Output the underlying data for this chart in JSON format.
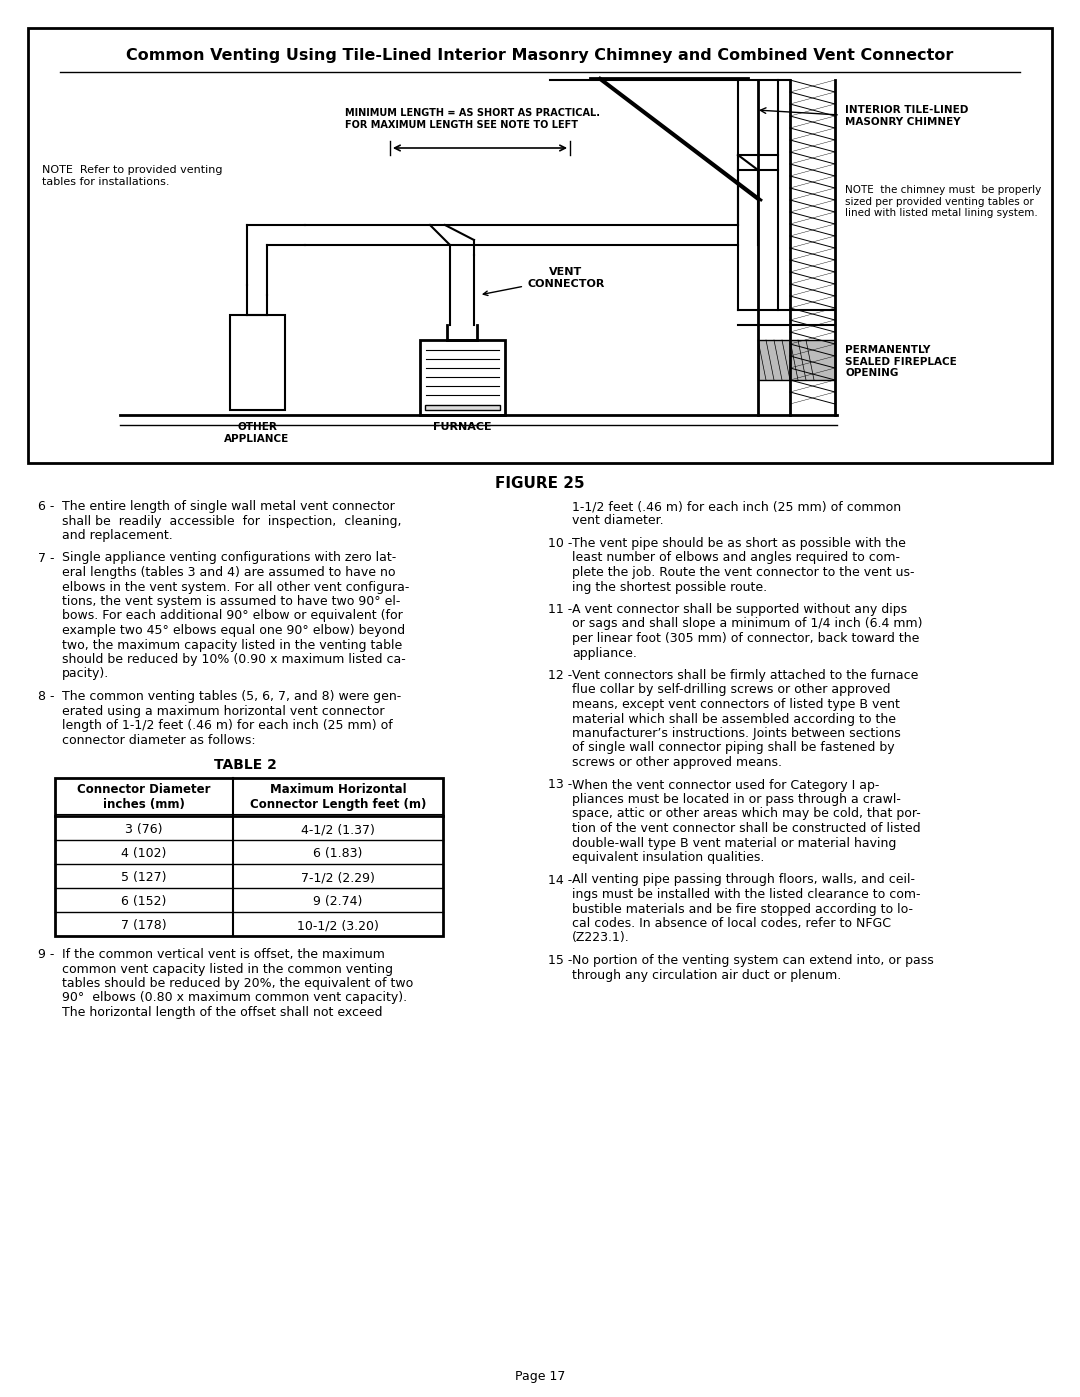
{
  "title": "Common Venting Using Tile-Lined Interior Masonry Chimney and Combined Vent Connector",
  "figure_label": "FIGURE 25",
  "table_title": "TABLE 2",
  "table_headers": [
    "Connector Diameter\ninches (mm)",
    "Maximum Horizontal\nConnector Length feet (m)"
  ],
  "table_data": [
    [
      "3 (76)",
      "4-1/2 (1.37)"
    ],
    [
      "4 (102)",
      "6 (1.83)"
    ],
    [
      "5 (127)",
      "7-1/2 (2.29)"
    ],
    [
      "6 (152)",
      "9 (2.74)"
    ],
    [
      "7 (178)",
      "10-1/2 (3.20)"
    ]
  ],
  "page_number": "Page 17",
  "bg_color": "#ffffff",
  "diagram_border_color": "#000000",
  "text_color": "#000000",
  "diagram_notes": {
    "min_length": "MINIMUM LENGTH = AS SHORT AS PRACTICAL.\nFOR MAXIMUM LENGTH SEE NOTE TO LEFT",
    "note_left": "NOTE  Refer to provided venting\ntables for installations.",
    "interior_chimney": "INTERIOR TILE-LINED\nMASONRY CHIMNEY",
    "note_chimney": "NOTE  the chimney must  be properly\nsized per provided venting tables or\nlined with listed metal lining system.",
    "vent_connector": "VENT\nCONNECTOR",
    "other_appliance": "OTHER\nAPPLIANCE",
    "furnace": "FURNACE",
    "perm_sealed": "PERMANENTLY\nSEALED FIREPLACE\nOPENING"
  },
  "left_col_items": [
    {
      "num": "6",
      "lines": [
        "The entire length of single wall metal vent connector",
        "shall be  readily  accessible  for  inspection,  cleaning,",
        "and replacement."
      ]
    },
    {
      "num": "7",
      "lines": [
        "Single appliance venting configurations with zero lat-",
        "eral lengths (tables 3 and 4) are assumed to have no",
        "elbows in the vent system. For all other vent configura-",
        "tions, the vent system is assumed to have two 90° el-",
        "bows. For each additional 90° elbow or equivalent (for",
        "example two 45° elbows equal one 90° elbow) beyond",
        "two, the maximum capacity listed in the venting table",
        "should be reduced by 10% (0.90 x maximum listed ca-",
        "pacity)."
      ]
    },
    {
      "num": "8",
      "lines": [
        "The common venting tables (5, 6, 7, and 8) were gen-",
        "erated using a maximum horizontal vent connector",
        "length of 1-1/2 feet (.46 m) for each inch (25 mm) of",
        "connector diameter as follows:"
      ]
    }
  ],
  "left_col_item9": {
    "num": "9",
    "lines": [
      "If the common vertical vent is offset, the maximum",
      "common vent capacity listed in the common venting",
      "tables should be reduced by 20%, the equivalent of two",
      "90°  elbows (0.80 x maximum common vent capacity).",
      "The horizontal length of the offset shall not exceed"
    ]
  },
  "right_col_continuation": [
    "1-1/2 feet (.46 m) for each inch (25 mm) of common",
    "vent diameter."
  ],
  "right_col_items": [
    {
      "num": "10",
      "lines": [
        "The vent pipe should be as short as possible with the",
        "least number of elbows and angles required to com-",
        "plete the job. Route the vent connector to the vent us-",
        "ing the shortest possible route."
      ]
    },
    {
      "num": "11",
      "lines": [
        "A vent connector shall be supported without any dips",
        "or sags and shall slope a minimum of 1/4 inch (6.4 mm)",
        "per linear foot (305 mm) of connector, back toward the",
        "appliance."
      ]
    },
    {
      "num": "12",
      "lines": [
        "Vent connectors shall be firmly attached to the furnace",
        "flue collar by self-drilling screws or other approved",
        "means, except vent connectors of listed type B vent",
        "material which shall be assembled according to the",
        "manufacturer’s instructions. Joints between sections",
        "of single wall connector piping shall be fastened by",
        "screws or other approved means."
      ]
    },
    {
      "num": "13",
      "lines": [
        "When the vent connector used for Category I ap-",
        "pliances must be located in or pass through a crawl-",
        "space, attic or other areas which may be cold, that por-",
        "tion of the vent connector shall be constructed of listed",
        "double-wall type B vent material or material having",
        "equivalent insulation qualities."
      ]
    },
    {
      "num": "14",
      "lines": [
        "All venting pipe passing through floors, walls, and ceil-",
        "ings must be installed with the listed clearance to com-",
        "bustible materials and be fire stopped according to lo-",
        "cal codes. In absence of local codes, refer to NFGC",
        "(Z223.1)."
      ]
    },
    {
      "num": "15",
      "lines": [
        "No portion of the venting system can extend into, or pass",
        "through any circulation air duct or plenum."
      ]
    }
  ]
}
